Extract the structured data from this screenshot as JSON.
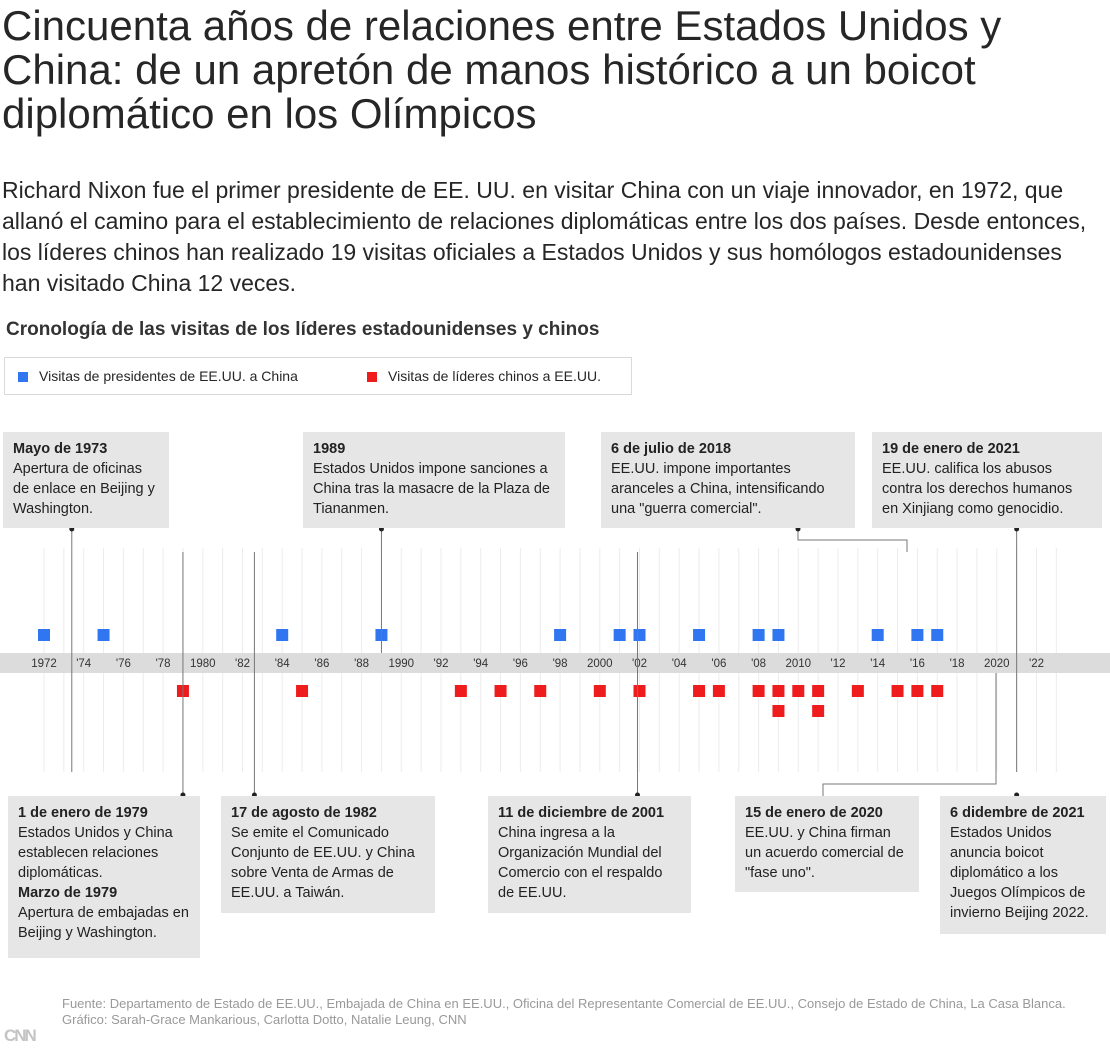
{
  "header": {
    "title": "Cincuenta años de relaciones entre Estados Unidos y China: de un apretón de manos histórico a un boicot diplomático en los Olímpicos",
    "subtitle": "Richard Nixon fue el primer presidente de EE. UU. en visitar China con un viaje innovador, en 1972, que allanó el camino para el establecimiento de relaciones diplomáticas entre los dos países. Desde entonces, los líderes chinos han realizado 19 visitas oficiales a Estados Unidos y sus homólogos estadounidenses han visitado China 12 veces."
  },
  "chart_data": {
    "type": "scatter",
    "title": "Cronología de las visitas de los líderes estadounidenses y chinos",
    "x_range": [
      1971,
      2024
    ],
    "x_ticks": [
      {
        "year": 1972,
        "label": "1972"
      },
      {
        "year": 1974,
        "label": "'74"
      },
      {
        "year": 1976,
        "label": "'76"
      },
      {
        "year": 1978,
        "label": "'78"
      },
      {
        "year": 1980,
        "label": "1980"
      },
      {
        "year": 1982,
        "label": "'82"
      },
      {
        "year": 1984,
        "label": "'84"
      },
      {
        "year": 1986,
        "label": "'86"
      },
      {
        "year": 1988,
        "label": "'88"
      },
      {
        "year": 1990,
        "label": "1990"
      },
      {
        "year": 1992,
        "label": "'92"
      },
      {
        "year": 1994,
        "label": "'94"
      },
      {
        "year": 1996,
        "label": "'96"
      },
      {
        "year": 1998,
        "label": "'98"
      },
      {
        "year": 2000,
        "label": "2000"
      },
      {
        "year": 2002,
        "label": "'02"
      },
      {
        "year": 2004,
        "label": "'04"
      },
      {
        "year": 2006,
        "label": "'06"
      },
      {
        "year": 2008,
        "label": "'08"
      },
      {
        "year": 2010,
        "label": "2010"
      },
      {
        "year": 2012,
        "label": "'12"
      },
      {
        "year": 2014,
        "label": "'14"
      },
      {
        "year": 2016,
        "label": "'16"
      },
      {
        "year": 2018,
        "label": "'18"
      },
      {
        "year": 2020,
        "label": "2020"
      },
      {
        "year": 2022,
        "label": "'22"
      }
    ],
    "series": [
      {
        "name": "Visitas de presidentes de EE.UU. a China",
        "color": "#2f76f0",
        "position": "above",
        "years": [
          1972,
          1975,
          1984,
          1989,
          1998,
          2001,
          2002,
          2005,
          2008,
          2009,
          2014,
          2016,
          2017
        ]
      },
      {
        "name": "Visitas de líderes chinos a EE.UU.",
        "color": "#ee1c1c",
        "position": "below",
        "years": [
          1979,
          1985,
          1993,
          1995,
          1997,
          2000,
          2002,
          2005,
          2006,
          2008,
          2009,
          2009,
          2010,
          2011,
          2011,
          2013,
          2015,
          2016,
          2017
        ]
      }
    ],
    "annotations": [
      {
        "id": "a1973",
        "events": [
          {
            "date": "Mayo de 1973",
            "text": "Apertura de oficinas de enlace en Beijing y Washington."
          }
        ]
      },
      {
        "id": "a1989",
        "events": [
          {
            "date": "1989",
            "text": "Estados Unidos impone sanciones a China tras la masacre de la Plaza de Tiananmen."
          }
        ]
      },
      {
        "id": "a2018",
        "events": [
          {
            "date": "6 de julio de 2018",
            "text": "EE.UU. impone importantes aranceles a China, intensificando una \"guerra comercial\"."
          }
        ]
      },
      {
        "id": "a2021a",
        "events": [
          {
            "date": "19 de enero de 2021",
            "text": "EE.UU. califica los abusos contra los derechos humanos en Xinjiang como genocidio."
          }
        ]
      },
      {
        "id": "a1979",
        "events": [
          {
            "date": "1 de enero de 1979",
            "text": "Estados Unidos y China establecen relaciones diplomáticas."
          },
          {
            "date": "Marzo de 1979",
            "text": "Apertura de embajadas en Beijing y Washington."
          }
        ]
      },
      {
        "id": "a1982",
        "events": [
          {
            "date": "17 de agosto de 1982",
            "text": "Se emite el Comunicado Conjunto de EE.UU. y China sobre Venta de Armas de EE.UU. a Taiwán."
          }
        ]
      },
      {
        "id": "a2001",
        "events": [
          {
            "date": "11 de diciembre de 2001",
            "text": "China ingresa a la Organización Mundial del Comercio con el respaldo de EE.UU."
          }
        ]
      },
      {
        "id": "a2020",
        "events": [
          {
            "date": "15 de enero de 2020",
            "text": "EE.UU. y China firman un acuerdo comercial de \"fase uno\"."
          }
        ]
      },
      {
        "id": "a2021b",
        "events": [
          {
            "date": "6 didembre de 2021",
            "text": "Estados Unidos anuncia boicot diplomático a los Juegos Olímpicos de invierno Beijing 2022."
          }
        ]
      }
    ]
  },
  "footer": {
    "logo": "CNN",
    "source": "Fuente: Departamento de Estado de EE.UU., Embajada de China en EE.UU., Oficina del Representante Comercial de EE.UU., Consejo de Estado de China, La Casa Blanca.",
    "credit": "Gráfico: Sarah-Grace Mankarious, Carlotta Dotto,  Natalie Leung, CNN"
  },
  "colors": {
    "us": "#2f76f0",
    "china": "#ee1c1c",
    "axis_band": "#dcdcdc",
    "card": "#e6e6e6"
  }
}
